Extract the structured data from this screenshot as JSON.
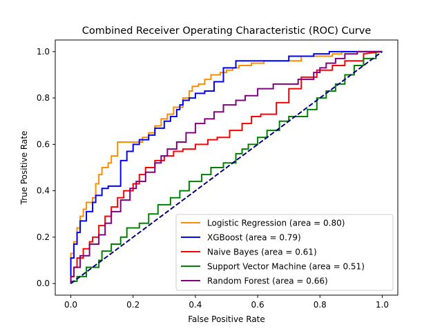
{
  "chart_data": {
    "type": "line",
    "title": "Combined Receiver Operating Characteristic (ROC) Curve",
    "xlabel": "False Positive Rate",
    "ylabel": "True Positive Rate",
    "xlim": [
      -0.05,
      1.05
    ],
    "ylim": [
      -0.05,
      1.05
    ],
    "xticks": [
      0.0,
      0.2,
      0.4,
      0.6,
      0.8,
      1.0
    ],
    "yticks": [
      0.0,
      0.2,
      0.4,
      0.6,
      0.8,
      1.0
    ],
    "tick_labels_x": [
      "0.0",
      "0.2",
      "0.4",
      "0.6",
      "0.8",
      "1.0"
    ],
    "tick_labels_y": [
      "0.0",
      "0.2",
      "0.4",
      "0.6",
      "0.8",
      "1.0"
    ],
    "grid": false,
    "legend_position": "lower right",
    "diagonal": {
      "x": [
        0,
        1
      ],
      "y": [
        0,
        1
      ],
      "color": "#000080",
      "style": "dashed"
    },
    "series": [
      {
        "name": "Logistic Regression (area = 0.80)",
        "color": "#ff8c00",
        "x": [
          0.0,
          0.0,
          0.01,
          0.01,
          0.02,
          0.02,
          0.03,
          0.03,
          0.04,
          0.04,
          0.05,
          0.05,
          0.07,
          0.07,
          0.08,
          0.08,
          0.09,
          0.09,
          0.1,
          0.1,
          0.12,
          0.12,
          0.13,
          0.13,
          0.15,
          0.15,
          0.23,
          0.23,
          0.25,
          0.25,
          0.27,
          0.27,
          0.29,
          0.29,
          0.31,
          0.31,
          0.33,
          0.33,
          0.36,
          0.36,
          0.38,
          0.38,
          0.39,
          0.39,
          0.41,
          0.41,
          0.43,
          0.43,
          0.45,
          0.45,
          0.48,
          0.48,
          0.5,
          0.5,
          0.52,
          0.52,
          0.54,
          0.54,
          0.58,
          0.58,
          0.62,
          0.62,
          0.64,
          0.64,
          0.74,
          0.74,
          0.76,
          0.76,
          0.84,
          0.84,
          0.87,
          0.87,
          0.9,
          0.9,
          1.0
        ],
        "y": [
          0.0,
          0.13,
          0.13,
          0.18,
          0.18,
          0.24,
          0.24,
          0.29,
          0.29,
          0.32,
          0.32,
          0.35,
          0.35,
          0.37,
          0.37,
          0.43,
          0.43,
          0.47,
          0.47,
          0.5,
          0.5,
          0.52,
          0.52,
          0.55,
          0.55,
          0.61,
          0.61,
          0.63,
          0.63,
          0.65,
          0.65,
          0.68,
          0.68,
          0.71,
          0.71,
          0.73,
          0.73,
          0.76,
          0.76,
          0.8,
          0.8,
          0.83,
          0.83,
          0.85,
          0.85,
          0.86,
          0.86,
          0.88,
          0.88,
          0.9,
          0.9,
          0.91,
          0.91,
          0.92,
          0.92,
          0.93,
          0.93,
          0.94,
          0.94,
          0.95,
          0.95,
          0.96,
          0.96,
          0.96,
          0.96,
          0.98,
          0.98,
          0.98,
          0.98,
          0.99,
          0.99,
          1.0,
          1.0,
          1.0,
          1.0
        ]
      },
      {
        "name": "XGBoost (area = 0.79)",
        "color": "#0000ff",
        "x": [
          0.0,
          0.0,
          0.01,
          0.01,
          0.02,
          0.02,
          0.03,
          0.03,
          0.05,
          0.05,
          0.07,
          0.07,
          0.08,
          0.08,
          0.1,
          0.1,
          0.12,
          0.12,
          0.16,
          0.16,
          0.18,
          0.18,
          0.2,
          0.2,
          0.22,
          0.22,
          0.25,
          0.25,
          0.27,
          0.27,
          0.3,
          0.3,
          0.32,
          0.32,
          0.34,
          0.34,
          0.35,
          0.35,
          0.36,
          0.36,
          0.38,
          0.38,
          0.4,
          0.4,
          0.43,
          0.43,
          0.46,
          0.46,
          0.49,
          0.49,
          0.53,
          0.53,
          0.62,
          0.62,
          0.7,
          0.7,
          0.78,
          0.78,
          0.83,
          0.83,
          1.0
        ],
        "y": [
          0.0,
          0.11,
          0.11,
          0.17,
          0.17,
          0.22,
          0.22,
          0.27,
          0.27,
          0.31,
          0.31,
          0.35,
          0.35,
          0.38,
          0.38,
          0.41,
          0.41,
          0.42,
          0.42,
          0.53,
          0.53,
          0.57,
          0.57,
          0.6,
          0.6,
          0.62,
          0.62,
          0.64,
          0.64,
          0.67,
          0.67,
          0.7,
          0.7,
          0.72,
          0.72,
          0.75,
          0.75,
          0.77,
          0.77,
          0.79,
          0.79,
          0.8,
          0.8,
          0.82,
          0.82,
          0.83,
          0.83,
          0.87,
          0.87,
          0.93,
          0.93,
          0.96,
          0.96,
          0.96,
          0.96,
          0.98,
          0.98,
          0.99,
          0.99,
          1.0,
          1.0
        ]
      },
      {
        "name": "Naive Bayes (area = 0.61)",
        "color": "#ff0000",
        "x": [
          0.0,
          0.0,
          0.01,
          0.01,
          0.02,
          0.02,
          0.04,
          0.04,
          0.06,
          0.06,
          0.07,
          0.07,
          0.09,
          0.09,
          0.11,
          0.11,
          0.13,
          0.13,
          0.15,
          0.15,
          0.17,
          0.17,
          0.2,
          0.2,
          0.22,
          0.22,
          0.24,
          0.24,
          0.27,
          0.27,
          0.3,
          0.3,
          0.33,
          0.33,
          0.36,
          0.36,
          0.4,
          0.4,
          0.44,
          0.44,
          0.47,
          0.47,
          0.51,
          0.51,
          0.55,
          0.55,
          0.58,
          0.58,
          0.61,
          0.61,
          0.66,
          0.66,
          0.7,
          0.7,
          0.74,
          0.74,
          0.79,
          0.79,
          0.84,
          0.84,
          0.88,
          0.88,
          0.94,
          0.94,
          1.0
        ],
        "y": [
          0.0,
          0.03,
          0.03,
          0.07,
          0.07,
          0.11,
          0.11,
          0.15,
          0.15,
          0.18,
          0.18,
          0.2,
          0.2,
          0.25,
          0.25,
          0.29,
          0.29,
          0.33,
          0.33,
          0.37,
          0.37,
          0.4,
          0.4,
          0.43,
          0.43,
          0.47,
          0.47,
          0.5,
          0.5,
          0.53,
          0.53,
          0.55,
          0.55,
          0.57,
          0.57,
          0.58,
          0.58,
          0.6,
          0.6,
          0.62,
          0.62,
          0.63,
          0.63,
          0.66,
          0.66,
          0.69,
          0.69,
          0.72,
          0.72,
          0.73,
          0.73,
          0.78,
          0.78,
          0.84,
          0.84,
          0.89,
          0.89,
          0.92,
          0.92,
          0.94,
          0.94,
          0.96,
          0.96,
          0.99,
          1.0
        ]
      },
      {
        "name": "Support Vector Machine (area = 0.51)",
        "color": "#008000",
        "x": [
          0.0,
          0.0,
          0.02,
          0.02,
          0.05,
          0.05,
          0.09,
          0.09,
          0.1,
          0.1,
          0.13,
          0.13,
          0.16,
          0.16,
          0.18,
          0.18,
          0.22,
          0.22,
          0.25,
          0.25,
          0.28,
          0.28,
          0.32,
          0.32,
          0.35,
          0.35,
          0.38,
          0.38,
          0.42,
          0.42,
          0.45,
          0.45,
          0.49,
          0.49,
          0.53,
          0.53,
          0.55,
          0.55,
          0.57,
          0.57,
          0.6,
          0.6,
          0.63,
          0.63,
          0.67,
          0.67,
          0.7,
          0.7,
          0.76,
          0.76,
          0.79,
          0.79,
          0.82,
          0.82,
          0.85,
          0.85,
          0.88,
          0.88,
          0.91,
          0.91,
          0.94,
          0.94,
          0.98,
          0.98,
          1.0
        ],
        "y": [
          0.0,
          0.01,
          0.01,
          0.03,
          0.03,
          0.07,
          0.07,
          0.1,
          0.1,
          0.14,
          0.14,
          0.17,
          0.17,
          0.2,
          0.2,
          0.24,
          0.24,
          0.26,
          0.26,
          0.3,
          0.3,
          0.34,
          0.34,
          0.37,
          0.37,
          0.4,
          0.4,
          0.44,
          0.44,
          0.47,
          0.47,
          0.5,
          0.5,
          0.52,
          0.52,
          0.56,
          0.56,
          0.58,
          0.58,
          0.6,
          0.6,
          0.63,
          0.63,
          0.66,
          0.66,
          0.7,
          0.7,
          0.72,
          0.72,
          0.75,
          0.75,
          0.8,
          0.8,
          0.83,
          0.83,
          0.86,
          0.86,
          0.9,
          0.9,
          0.94,
          0.94,
          0.97,
          0.97,
          1.0,
          1.0
        ]
      },
      {
        "name": "Random Forest (area = 0.66)",
        "color": "#800080",
        "x": [
          0.0,
          0.0,
          0.01,
          0.01,
          0.03,
          0.03,
          0.06,
          0.06,
          0.09,
          0.09,
          0.11,
          0.11,
          0.13,
          0.13,
          0.16,
          0.16,
          0.19,
          0.19,
          0.21,
          0.21,
          0.24,
          0.24,
          0.27,
          0.27,
          0.29,
          0.29,
          0.31,
          0.31,
          0.34,
          0.34,
          0.37,
          0.37,
          0.4,
          0.4,
          0.43,
          0.43,
          0.46,
          0.46,
          0.49,
          0.49,
          0.53,
          0.53,
          0.56,
          0.56,
          0.6,
          0.6,
          0.65,
          0.65,
          0.69,
          0.69,
          0.73,
          0.73,
          0.78,
          0.78,
          0.8,
          0.8,
          0.82,
          0.82,
          0.85,
          0.85,
          0.88,
          0.88,
          0.92,
          0.92,
          1.0
        ],
        "y": [
          0.0,
          0.03,
          0.03,
          0.07,
          0.07,
          0.12,
          0.12,
          0.17,
          0.17,
          0.21,
          0.21,
          0.26,
          0.26,
          0.31,
          0.31,
          0.36,
          0.36,
          0.41,
          0.41,
          0.44,
          0.44,
          0.48,
          0.48,
          0.52,
          0.52,
          0.55,
          0.55,
          0.58,
          0.58,
          0.61,
          0.61,
          0.65,
          0.65,
          0.69,
          0.69,
          0.71,
          0.71,
          0.74,
          0.74,
          0.77,
          0.77,
          0.79,
          0.79,
          0.81,
          0.81,
          0.84,
          0.84,
          0.86,
          0.86,
          0.86,
          0.86,
          0.88,
          0.88,
          0.91,
          0.91,
          0.93,
          0.93,
          0.95,
          0.95,
          0.97,
          0.97,
          0.99,
          0.99,
          1.0,
          1.0
        ]
      }
    ]
  }
}
